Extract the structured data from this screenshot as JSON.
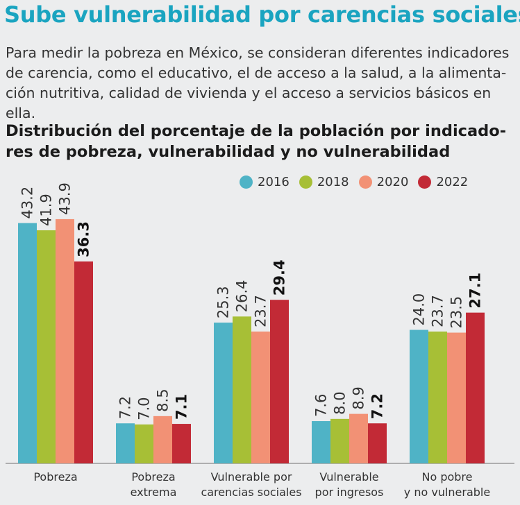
{
  "headline": "Sube vulnerabilidad por carencias sociales",
  "intro": "Para medir la pobreza en México, se consideran diferentes indicadores de carencia, como el educativo, el de acceso a la salud, a la alimenta- ción nutritiva, calidad de vivienda y el acceso a servicios básicos en ella.",
  "colors": {
    "headline": "#1aa4c0",
    "s2016": "#4fb3c6",
    "s2018": "#a7bf36",
    "s2020": "#f29175",
    "s2022": "#c22a36"
  },
  "chart_data": {
    "type": "bar",
    "title": "Distribución del porcentaje de la población por indicado- res de pobreza, vulnerabilidad y no vulnerabilidad",
    "categories": [
      [
        "Pobreza"
      ],
      [
        "Pobreza",
        "extrema"
      ],
      [
        "Vulnerable por",
        "carencias sociales"
      ],
      [
        "Vulnerable",
        "por ingresos"
      ],
      [
        "No pobre",
        "y no vulnerable"
      ]
    ],
    "series": [
      {
        "name": "2016",
        "values": [
          43.2,
          7.2,
          25.3,
          7.6,
          24.0
        ],
        "labels": [
          "43.2",
          "7.2",
          "25.3",
          "7.6",
          "24.0"
        ]
      },
      {
        "name": "2018",
        "values": [
          41.9,
          7.0,
          26.4,
          8.0,
          23.7
        ],
        "labels": [
          "41.9",
          "7.0",
          "26.4",
          "8.0",
          "23.7"
        ]
      },
      {
        "name": "2020",
        "values": [
          43.9,
          8.5,
          23.7,
          8.9,
          23.5
        ],
        "labels": [
          "43.9",
          "8.5",
          "23.7",
          "8.9",
          "23.5"
        ]
      },
      {
        "name": "2022",
        "values": [
          36.3,
          7.1,
          29.4,
          7.2,
          27.1
        ],
        "labels": [
          "36.3",
          "7.1",
          "29.4",
          "7.2",
          "27.1"
        ]
      }
    ],
    "highlight_series": "2022",
    "ylim": [
      0,
      45
    ],
    "legend": "top-right",
    "grid": false
  }
}
